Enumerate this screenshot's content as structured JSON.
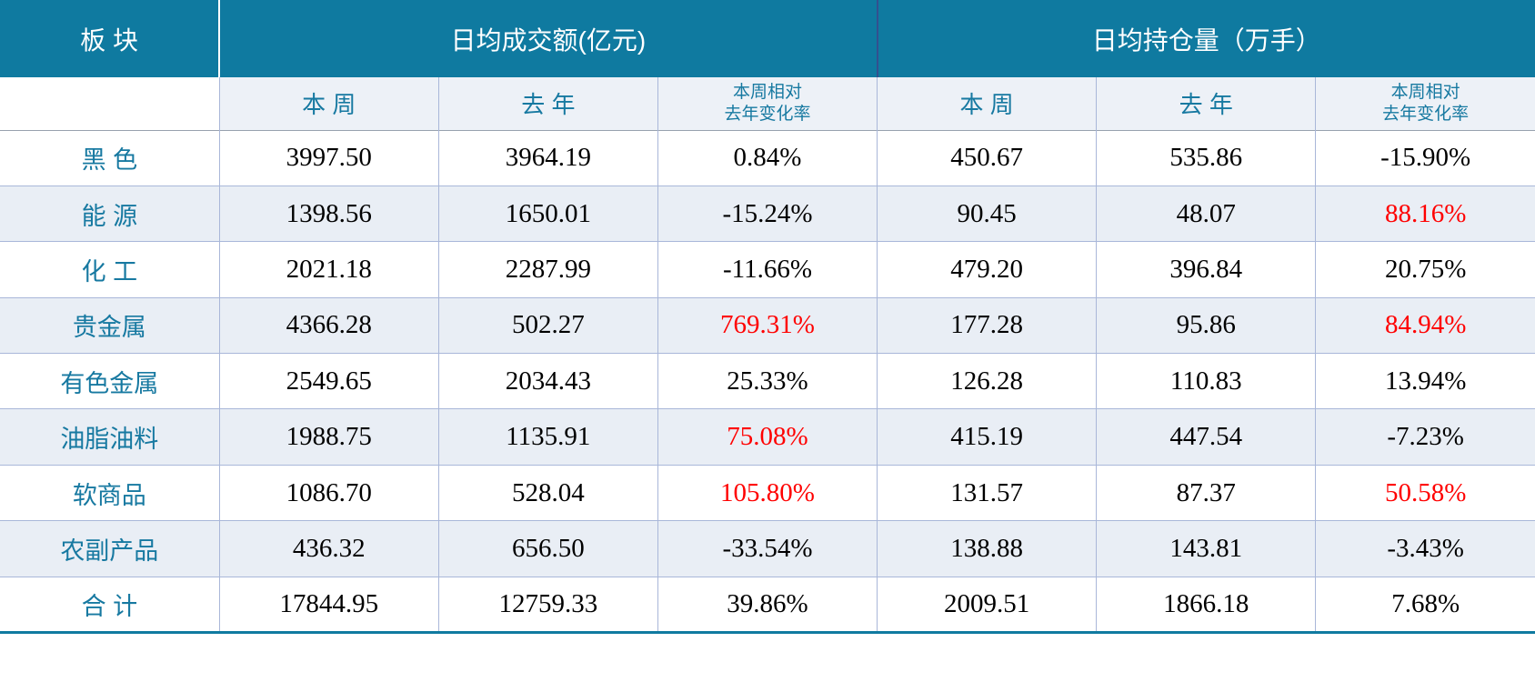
{
  "colors": {
    "header_bg": "#0f7aa0",
    "accent_text": "#1779a1",
    "highlight_red": "#ff0000",
    "row_alt_bg": "#e9eef5",
    "grid_line": "#a9b7d9"
  },
  "table": {
    "header": {
      "sector": "板 块",
      "turnover": "日均成交额(亿元)",
      "open_interest": "日均持仓量（万手）"
    },
    "subheader": {
      "this_week": "本 周",
      "last_year": "去 年",
      "change_line1": "本周相对",
      "change_line2": "去年变化率"
    },
    "rows": [
      {
        "name": "黑 色",
        "turnover_week": "3997.50",
        "turnover_last_year": "3964.19",
        "turnover_change": "0.84%",
        "turnover_change_red": false,
        "oi_week": "450.67",
        "oi_last_year": "535.86",
        "oi_change": "-15.90%",
        "oi_change_red": false
      },
      {
        "name": "能 源",
        "turnover_week": "1398.56",
        "turnover_last_year": "1650.01",
        "turnover_change": "-15.24%",
        "turnover_change_red": false,
        "oi_week": "90.45",
        "oi_last_year": "48.07",
        "oi_change": "88.16%",
        "oi_change_red": true
      },
      {
        "name": "化 工",
        "turnover_week": "2021.18",
        "turnover_last_year": "2287.99",
        "turnover_change": "-11.66%",
        "turnover_change_red": false,
        "oi_week": "479.20",
        "oi_last_year": "396.84",
        "oi_change": "20.75%",
        "oi_change_red": false
      },
      {
        "name": "贵金属",
        "turnover_week": "4366.28",
        "turnover_last_year": "502.27",
        "turnover_change": "769.31%",
        "turnover_change_red": true,
        "oi_week": "177.28",
        "oi_last_year": "95.86",
        "oi_change": "84.94%",
        "oi_change_red": true
      },
      {
        "name": "有色金属",
        "turnover_week": "2549.65",
        "turnover_last_year": "2034.43",
        "turnover_change": "25.33%",
        "turnover_change_red": false,
        "oi_week": "126.28",
        "oi_last_year": "110.83",
        "oi_change": "13.94%",
        "oi_change_red": false
      },
      {
        "name": "油脂油料",
        "turnover_week": "1988.75",
        "turnover_last_year": "1135.91",
        "turnover_change": "75.08%",
        "turnover_change_red": true,
        "oi_week": "415.19",
        "oi_last_year": "447.54",
        "oi_change": "-7.23%",
        "oi_change_red": false
      },
      {
        "name": "软商品",
        "turnover_week": "1086.70",
        "turnover_last_year": "528.04",
        "turnover_change": "105.80%",
        "turnover_change_red": true,
        "oi_week": "131.57",
        "oi_last_year": "87.37",
        "oi_change": "50.58%",
        "oi_change_red": true
      },
      {
        "name": "农副产品",
        "turnover_week": "436.32",
        "turnover_last_year": "656.50",
        "turnover_change": "-33.54%",
        "turnover_change_red": false,
        "oi_week": "138.88",
        "oi_last_year": "143.81",
        "oi_change": "-3.43%",
        "oi_change_red": false
      },
      {
        "name": "合 计",
        "turnover_week": "17844.95",
        "turnover_last_year": "12759.33",
        "turnover_change": "39.86%",
        "turnover_change_red": false,
        "oi_week": "2009.51",
        "oi_last_year": "1866.18",
        "oi_change": "7.68%",
        "oi_change_red": false
      }
    ]
  },
  "chart_data": {
    "type": "table",
    "title": "板块 日均成交额(亿元) 与 日均持仓量（万手）",
    "columns": [
      "板块",
      "成交额-本周",
      "成交额-去年",
      "成交额-本周相对去年变化率",
      "持仓量-本周",
      "持仓量-去年",
      "持仓量-本周相对去年变化率"
    ],
    "rows": [
      [
        "黑色",
        3997.5,
        3964.19,
        "0.84%",
        450.67,
        535.86,
        "-15.90%"
      ],
      [
        "能源",
        1398.56,
        1650.01,
        "-15.24%",
        90.45,
        48.07,
        "88.16%"
      ],
      [
        "化工",
        2021.18,
        2287.99,
        "-11.66%",
        479.2,
        396.84,
        "20.75%"
      ],
      [
        "贵金属",
        4366.28,
        502.27,
        "769.31%",
        177.28,
        95.86,
        "84.94%"
      ],
      [
        "有色金属",
        2549.65,
        2034.43,
        "25.33%",
        126.28,
        110.83,
        "13.94%"
      ],
      [
        "油脂油料",
        1988.75,
        1135.91,
        "75.08%",
        415.19,
        447.54,
        "-7.23%"
      ],
      [
        "软商品",
        1086.7,
        528.04,
        "105.80%",
        131.57,
        87.37,
        "50.58%"
      ],
      [
        "农副产品",
        436.32,
        656.5,
        "-33.54%",
        138.88,
        143.81,
        "-3.43%"
      ],
      [
        "合计",
        17844.95,
        12759.33,
        "39.86%",
        2009.51,
        1866.18,
        "7.68%"
      ]
    ],
    "red_highlight_cells": [
      "能源.持仓量变化率",
      "贵金属.成交额变化率",
      "贵金属.持仓量变化率",
      "油脂油料.成交额变化率",
      "软商品.成交额变化率",
      "软商品.持仓量变化率"
    ]
  }
}
